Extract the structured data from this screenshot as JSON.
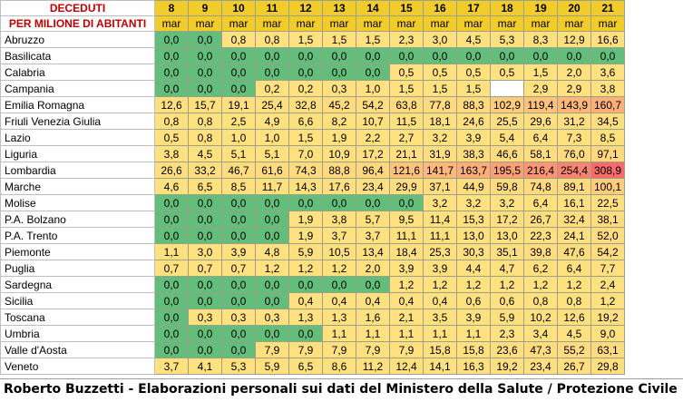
{
  "header": {
    "title_line1": "DECEDUTI",
    "title_line2": "PER MILIONE DI ABITANTI",
    "days": [
      "8",
      "9",
      "10",
      "11",
      "12",
      "13",
      "14",
      "15",
      "16",
      "17",
      "18",
      "19",
      "20",
      "21"
    ],
    "month": "mar"
  },
  "colors": {
    "green": "#63be7b",
    "yellow": "#ffe17f",
    "red": "#f8696b",
    "header": "#f2cc2a",
    "title_red": "#c00000"
  },
  "rows": [
    {
      "region": "Abruzzo",
      "values": [
        "0,0",
        "0,0",
        "0,8",
        "0,8",
        "1,5",
        "1,5",
        "1,5",
        "2,3",
        "3,0",
        "4,5",
        "5,3",
        "8,3",
        "12,9",
        "16,6"
      ]
    },
    {
      "region": "Basilicata",
      "values": [
        "0,0",
        "0,0",
        "0,0",
        "0,0",
        "0,0",
        "0,0",
        "0,0",
        "0,0",
        "0,0",
        "0,0",
        "0,0",
        "0,0",
        "0,0",
        "0,0"
      ]
    },
    {
      "region": "Calabria",
      "values": [
        "0,0",
        "0,0",
        "0,0",
        "0,0",
        "0,0",
        "0,0",
        "0,0",
        "0,5",
        "0,5",
        "0,5",
        "0,5",
        "1,5",
        "2,0",
        "3,6"
      ]
    },
    {
      "region": "Campania",
      "values": [
        "0,0",
        "0,0",
        "0,0",
        "0,2",
        "0,2",
        "0,3",
        "1,0",
        "1,5",
        "1,5",
        "1,5",
        "",
        "2,9",
        "2,9",
        "3,8"
      ]
    },
    {
      "region": "Emilia Romagna",
      "values": [
        "12,6",
        "15,7",
        "19,1",
        "25,4",
        "32,8",
        "45,2",
        "54,2",
        "63,8",
        "77,8",
        "88,3",
        "102,9",
        "119,4",
        "143,9",
        "160,7"
      ]
    },
    {
      "region": "Friuli Venezia Giulia",
      "values": [
        "0,8",
        "0,8",
        "2,5",
        "4,9",
        "6,6",
        "8,2",
        "10,7",
        "11,5",
        "18,1",
        "24,6",
        "25,5",
        "29,6",
        "31,2",
        "34,5"
      ]
    },
    {
      "region": "Lazio",
      "values": [
        "0,5",
        "0,8",
        "1,0",
        "1,0",
        "1,5",
        "1,9",
        "2,2",
        "2,7",
        "3,2",
        "3,9",
        "5,4",
        "6,4",
        "7,3",
        "8,5"
      ]
    },
    {
      "region": "Liguria",
      "values": [
        "3,8",
        "4,5",
        "5,1",
        "5,1",
        "7,0",
        "10,9",
        "17,2",
        "21,1",
        "31,9",
        "38,3",
        "46,6",
        "58,1",
        "76,0",
        "97,1"
      ]
    },
    {
      "region": "Lombardia",
      "values": [
        "26,6",
        "33,2",
        "46,7",
        "61,6",
        "74,3",
        "88,8",
        "96,4",
        "121,6",
        "141,7",
        "163,7",
        "195,5",
        "216,4",
        "254,4",
        "308,9"
      ]
    },
    {
      "region": "Marche",
      "values": [
        "4,6",
        "6,5",
        "8,5",
        "11,7",
        "14,3",
        "17,6",
        "23,4",
        "29,9",
        "37,1",
        "44,9",
        "59,8",
        "74,8",
        "89,1",
        "100,1"
      ]
    },
    {
      "region": "Molise",
      "values": [
        "0,0",
        "0,0",
        "0,0",
        "0,0",
        "0,0",
        "0,0",
        "0,0",
        "0,0",
        "3,2",
        "3,2",
        "3,2",
        "6,4",
        "16,1",
        "22,5"
      ]
    },
    {
      "region": "P.A. Bolzano",
      "values": [
        "0,0",
        "0,0",
        "0,0",
        "0,0",
        "1,9",
        "3,8",
        "5,7",
        "9,5",
        "11,4",
        "15,3",
        "17,2",
        "26,7",
        "32,4",
        "38,1"
      ]
    },
    {
      "region": "P.A. Trento",
      "values": [
        "0,0",
        "0,0",
        "0,0",
        "0,0",
        "1,9",
        "3,7",
        "3,7",
        "11,1",
        "11,1",
        "13,0",
        "13,0",
        "22,3",
        "24,1",
        "52,0"
      ]
    },
    {
      "region": "Piemonte",
      "values": [
        "1,1",
        "3,0",
        "3,9",
        "4,8",
        "5,9",
        "10,5",
        "13,4",
        "18,4",
        "25,3",
        "30,3",
        "35,1",
        "39,8",
        "47,6",
        "54,2"
      ]
    },
    {
      "region": "Puglia",
      "values": [
        "0,7",
        "0,7",
        "0,7",
        "1,2",
        "1,2",
        "1,2",
        "2,0",
        "3,9",
        "3,9",
        "4,4",
        "4,7",
        "6,2",
        "6,4",
        "7,7"
      ]
    },
    {
      "region": "Sardegna",
      "values": [
        "0,0",
        "0,0",
        "0,0",
        "0,0",
        "0,0",
        "0,0",
        "0,0",
        "1,2",
        "1,2",
        "1,2",
        "1,2",
        "1,2",
        "1,2",
        "2,4"
      ]
    },
    {
      "region": "Sicilia",
      "values": [
        "0,0",
        "0,0",
        "0,0",
        "0,0",
        "0,4",
        "0,4",
        "0,4",
        "0,4",
        "0,4",
        "0,6",
        "0,6",
        "0,8",
        "0,8",
        "1,2"
      ]
    },
    {
      "region": "Toscana",
      "values": [
        "0,0",
        "0,3",
        "0,3",
        "0,3",
        "1,3",
        "1,3",
        "1,6",
        "2,1",
        "3,5",
        "3,9",
        "5,9",
        "10,2",
        "12,6",
        "19,2"
      ]
    },
    {
      "region": "Umbria",
      "values": [
        "0,0",
        "0,0",
        "0,0",
        "0,0",
        "0,0",
        "1,1",
        "1,1",
        "1,1",
        "1,1",
        "1,1",
        "2,3",
        "3,4",
        "4,5",
        "9,0"
      ]
    },
    {
      "region": "Valle d'Aosta",
      "values": [
        "0,0",
        "0,0",
        "0,0",
        "7,9",
        "7,9",
        "7,9",
        "7,9",
        "7,9",
        "15,8",
        "15,8",
        "23,6",
        "47,3",
        "55,2",
        "63,1"
      ]
    },
    {
      "region": "Veneto",
      "values": [
        "3,7",
        "4,1",
        "5,3",
        "5,9",
        "6,5",
        "8,6",
        "11,2",
        "12,4",
        "14,1",
        "16,3",
        "19,2",
        "23,4",
        "26,7",
        "29,8"
      ]
    }
  ],
  "footer": "Roberto Buzzetti - Elaborazioni personali sui dati del Ministero della Salute / Protezione Civile"
}
